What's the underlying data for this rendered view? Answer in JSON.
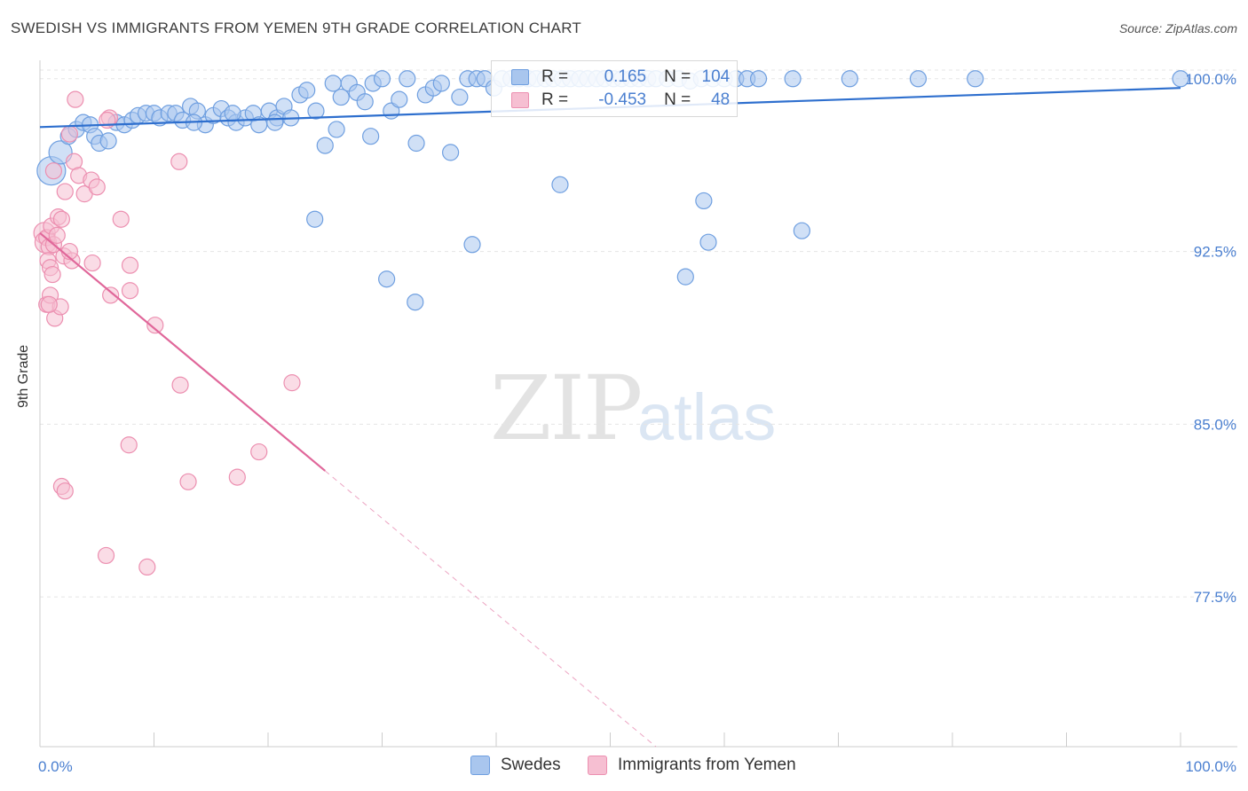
{
  "title": "SWEDISH VS IMMIGRANTS FROM YEMEN 9TH GRADE CORRELATION CHART",
  "source": "Source: ZipAtlas.com",
  "watermark": {
    "zip": "ZIP",
    "atlas": "atlas"
  },
  "legend_box": {
    "rows": [
      {
        "series": "Swedes",
        "r_label": "R =",
        "r_value": "0.165",
        "n_label": "N =",
        "n_value": "104"
      },
      {
        "series": "Immigrants from Yemen",
        "r_label": "R =",
        "r_value": "-0.453",
        "n_label": "N =",
        "n_value": "48"
      }
    ]
  },
  "colors": {
    "blue_fill": "#a9c6ee",
    "blue_stroke": "#6f9fe0",
    "blue_line": "#2e6fce",
    "pink_fill": "#f6bfd2",
    "pink_stroke": "#ec8fb0",
    "pink_line": "#e0679a",
    "axis_text": "#4a7fd0",
    "grid": "#e5e5e5"
  },
  "chart_data": {
    "type": "scatter",
    "title": "SWEDISH VS IMMIGRANTS FROM YEMEN 9TH GRADE CORRELATION CHART",
    "xlabel": "",
    "ylabel": "9th Grade",
    "xlim": [
      0,
      100
    ],
    "ylim": [
      71.0,
      100.8
    ],
    "x_tick_labels": [
      "0.0%",
      "100.0%"
    ],
    "y_ticks": [
      77.5,
      85.0,
      92.5,
      100.0
    ],
    "y_tick_labels": [
      "77.5%",
      "85.0%",
      "92.5%",
      "100.0%"
    ],
    "grid": true,
    "legend": [
      "Swedes",
      "Immigrants from Yemen"
    ],
    "series": [
      {
        "name": "Swedes",
        "r": 0.165,
        "n": 104,
        "trend": {
          "x0": 0,
          "y0": 97.9,
          "x1": 100,
          "y1": 99.6,
          "solid_until": 100
        },
        "points": [
          [
            1.0,
            96.0,
            16
          ],
          [
            1.8,
            96.8,
            13
          ],
          [
            2.5,
            97.5,
            9
          ],
          [
            3.2,
            97.8,
            9
          ],
          [
            3.8,
            98.1,
            9
          ],
          [
            4.4,
            98.0,
            9
          ],
          [
            4.8,
            97.5,
            9
          ],
          [
            5.2,
            97.2,
            9
          ],
          [
            6.0,
            97.3,
            9
          ],
          [
            6.7,
            98.1,
            9
          ],
          [
            7.4,
            98.0,
            9
          ],
          [
            8.1,
            98.2,
            9
          ],
          [
            8.6,
            98.4,
            9
          ],
          [
            9.3,
            98.5,
            9
          ],
          [
            10.0,
            98.5,
            9
          ],
          [
            10.5,
            98.3,
            9
          ],
          [
            11.3,
            98.5,
            9
          ],
          [
            11.9,
            98.5,
            9
          ],
          [
            12.5,
            98.2,
            9
          ],
          [
            13.2,
            98.8,
            9
          ],
          [
            13.8,
            98.6,
            9
          ],
          [
            14.5,
            98.0,
            9
          ],
          [
            15.2,
            98.4,
            9
          ],
          [
            15.9,
            98.7,
            9
          ],
          [
            16.5,
            98.3,
            9
          ],
          [
            17.2,
            98.1,
            9
          ],
          [
            18.0,
            98.3,
            9
          ],
          [
            18.7,
            98.5,
            9
          ],
          [
            19.2,
            98.0,
            9
          ],
          [
            20.1,
            98.6,
            9
          ],
          [
            20.8,
            98.3,
            9
          ],
          [
            21.4,
            98.8,
            9
          ],
          [
            22.0,
            98.3,
            9
          ],
          [
            22.8,
            99.3,
            9
          ],
          [
            23.4,
            99.5,
            9
          ],
          [
            24.2,
            98.6,
            9
          ],
          [
            25.0,
            97.1,
            9
          ],
          [
            25.7,
            99.8,
            9
          ],
          [
            26.4,
            99.2,
            9
          ],
          [
            27.1,
            99.8,
            9
          ],
          [
            27.8,
            99.4,
            9
          ],
          [
            28.5,
            99.0,
            9
          ],
          [
            29.2,
            99.8,
            9
          ],
          [
            30.0,
            100.0,
            9
          ],
          [
            30.8,
            98.6,
            9
          ],
          [
            31.5,
            99.1,
            9
          ],
          [
            32.2,
            100.0,
            9
          ],
          [
            33.0,
            97.2,
            9
          ],
          [
            33.8,
            99.3,
            9
          ],
          [
            34.5,
            99.6,
            9
          ],
          [
            35.2,
            99.8,
            9
          ],
          [
            36.0,
            96.8,
            9
          ],
          [
            36.8,
            99.2,
            9
          ],
          [
            37.5,
            100.0,
            9
          ],
          [
            38.3,
            100.0,
            9
          ],
          [
            39.0,
            100.0,
            9
          ],
          [
            39.8,
            99.6,
            9
          ],
          [
            40.5,
            100.0,
            9
          ],
          [
            41.3,
            100.0,
            9
          ],
          [
            42.0,
            100.0,
            9
          ],
          [
            42.8,
            100.0,
            9
          ],
          [
            43.5,
            100.0,
            9
          ],
          [
            44.3,
            100.0,
            9
          ],
          [
            45.0,
            100.0,
            9
          ],
          [
            45.8,
            100.0,
            9
          ],
          [
            46.5,
            100.0,
            9
          ],
          [
            47.3,
            100.0,
            9
          ],
          [
            48.0,
            100.0,
            9
          ],
          [
            48.8,
            100.0,
            9
          ],
          [
            49.5,
            100.0,
            9
          ],
          [
            50.3,
            100.0,
            9
          ],
          [
            51.0,
            100.0,
            9
          ],
          [
            51.8,
            100.0,
            9
          ],
          [
            52.5,
            100.0,
            9
          ],
          [
            53.3,
            100.0,
            9
          ],
          [
            54.0,
            100.0,
            9
          ],
          [
            55.0,
            100.0,
            9
          ],
          [
            56.0,
            100.0,
            9
          ],
          [
            57.0,
            99.9,
            9
          ],
          [
            58.0,
            100.0,
            9
          ],
          [
            59.0,
            100.0,
            9
          ],
          [
            60.0,
            100.0,
            9
          ],
          [
            61.0,
            100.0,
            9
          ],
          [
            62.0,
            100.0,
            9
          ],
          [
            63.0,
            100.0,
            9
          ],
          [
            66.0,
            100.0,
            9
          ],
          [
            71.0,
            100.0,
            9
          ],
          [
            77.0,
            100.0,
            9
          ],
          [
            82.0,
            100.0,
            9
          ],
          [
            100.0,
            100.0,
            9
          ],
          [
            24.1,
            93.9,
            9
          ],
          [
            30.4,
            91.3,
            9
          ],
          [
            32.9,
            90.3,
            9
          ],
          [
            37.9,
            92.8,
            9
          ],
          [
            45.6,
            95.4,
            9
          ],
          [
            56.6,
            91.4,
            9
          ],
          [
            58.2,
            94.7,
            9
          ],
          [
            58.6,
            92.9,
            9
          ],
          [
            66.8,
            93.4,
            9
          ],
          [
            20.6,
            98.1,
            9
          ],
          [
            16.9,
            98.5,
            9
          ],
          [
            13.5,
            98.1,
            9
          ],
          [
            26.0,
            97.8,
            9
          ],
          [
            29.0,
            97.5,
            9
          ]
        ]
      },
      {
        "name": "Immigrants from Yemen",
        "r": -0.453,
        "n": 48,
        "trend": {
          "x0": 0,
          "y0": 93.3,
          "x1": 54,
          "y1": 71.0,
          "solid_until": 25
        },
        "points": [
          [
            0.4,
            93.3,
            12
          ],
          [
            0.5,
            92.9,
            12
          ],
          [
            0.6,
            93.1,
            9
          ],
          [
            0.8,
            92.7,
            9
          ],
          [
            1.0,
            93.6,
            9
          ],
          [
            1.2,
            92.8,
            9
          ],
          [
            1.5,
            93.2,
            9
          ],
          [
            0.7,
            92.1,
            9
          ],
          [
            0.9,
            91.8,
            9
          ],
          [
            1.1,
            91.5,
            9
          ],
          [
            0.6,
            90.2,
            9
          ],
          [
            0.9,
            90.6,
            9
          ],
          [
            1.3,
            89.6,
            9
          ],
          [
            1.8,
            90.1,
            9
          ],
          [
            0.8,
            90.2,
            9
          ],
          [
            1.6,
            94.0,
            9
          ],
          [
            1.9,
            93.9,
            9
          ],
          [
            2.1,
            92.3,
            9
          ],
          [
            2.2,
            95.1,
            9
          ],
          [
            3.0,
            96.4,
            9
          ],
          [
            3.4,
            95.8,
            9
          ],
          [
            3.9,
            95.0,
            9
          ],
          [
            4.5,
            95.6,
            9
          ],
          [
            5.0,
            95.3,
            9
          ],
          [
            2.6,
            97.6,
            9
          ],
          [
            3.1,
            99.1,
            9
          ],
          [
            6.1,
            98.3,
            9
          ],
          [
            1.2,
            96.0,
            9
          ],
          [
            2.8,
            92.1,
            9
          ],
          [
            4.6,
            92.0,
            9
          ],
          [
            6.2,
            90.6,
            9
          ],
          [
            7.1,
            93.9,
            9
          ],
          [
            7.9,
            91.9,
            9
          ],
          [
            7.9,
            90.8,
            9
          ],
          [
            10.1,
            89.3,
            9
          ],
          [
            12.2,
            96.4,
            9
          ],
          [
            12.3,
            86.7,
            9
          ],
          [
            7.8,
            84.1,
            9
          ],
          [
            13.0,
            82.5,
            9
          ],
          [
            17.3,
            82.7,
            9
          ],
          [
            19.2,
            83.8,
            9
          ],
          [
            22.1,
            86.8,
            9
          ],
          [
            1.9,
            82.3,
            9
          ],
          [
            2.2,
            82.1,
            9
          ],
          [
            5.8,
            79.3,
            9
          ],
          [
            9.4,
            78.8,
            9
          ],
          [
            2.6,
            92.5,
            9
          ],
          [
            5.9,
            98.2,
            9
          ]
        ]
      }
    ]
  }
}
